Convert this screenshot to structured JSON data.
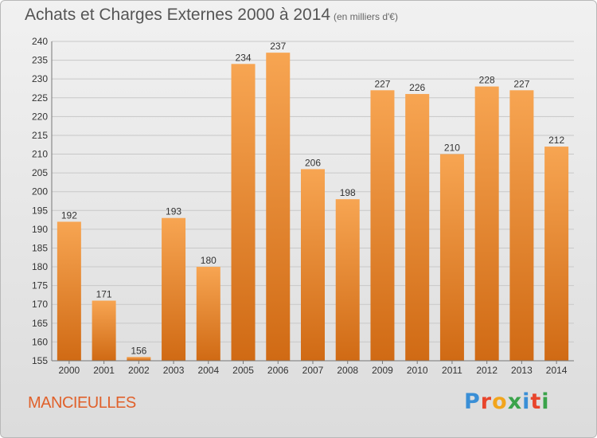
{
  "title": "Achats et Charges Externes 2000 à 2014",
  "subtitle": "(en milliers d'€)",
  "commune": "MANCIEULLES",
  "logo": {
    "text": "Proxiti",
    "letters": [
      {
        "char": "P",
        "color": "#3a8fd6"
      },
      {
        "char": "r",
        "color": "#e8452c"
      },
      {
        "char": "o",
        "color": "#f2a51c"
      },
      {
        "char": "x",
        "color": "#3aa34a"
      },
      {
        "char": "i",
        "color": "#3a8fd6"
      },
      {
        "char": "t",
        "color": "#e8452c"
      },
      {
        "char": "i",
        "color": "#3aa34a"
      }
    ]
  },
  "colors": {
    "bar_top": "#f7a552",
    "bar_bottom": "#d06a14",
    "grid": "#c8c8c8",
    "axis": "#777777",
    "text": "#333333"
  },
  "chart_data": {
    "type": "bar",
    "categories": [
      "2000",
      "2001",
      "2002",
      "2003",
      "2004",
      "2005",
      "2006",
      "2007",
      "2008",
      "2009",
      "2010",
      "2011",
      "2012",
      "2013",
      "2014"
    ],
    "values": [
      192,
      171,
      156,
      193,
      180,
      234,
      237,
      206,
      198,
      227,
      226,
      210,
      228,
      227,
      212
    ],
    "ylim": [
      155,
      240
    ],
    "yticks": [
      155,
      160,
      165,
      170,
      175,
      180,
      185,
      190,
      195,
      200,
      205,
      210,
      215,
      220,
      225,
      230,
      235,
      240
    ],
    "grid": true
  }
}
